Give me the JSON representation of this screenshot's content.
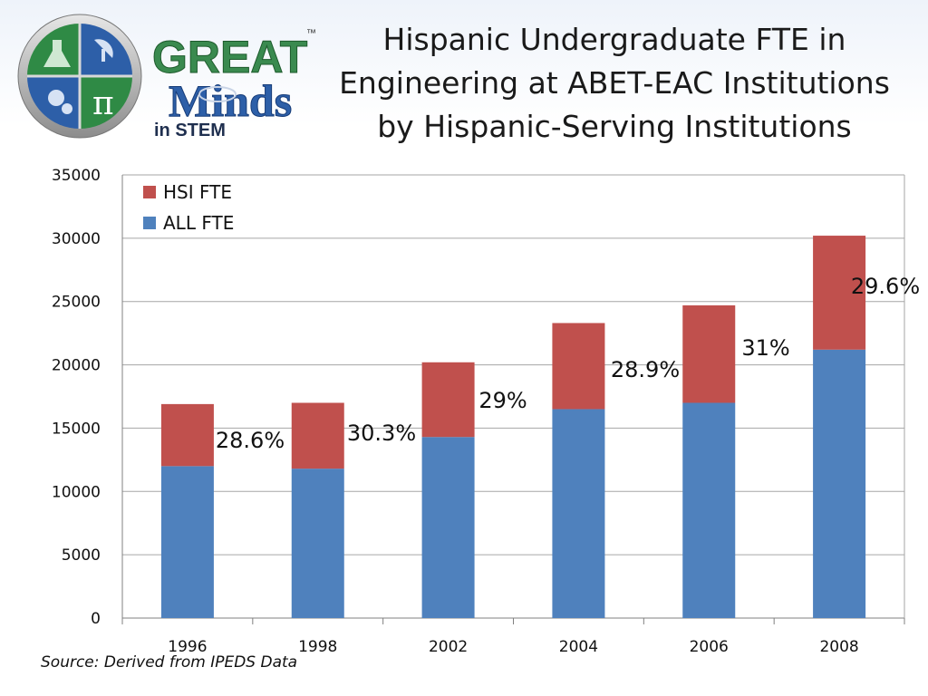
{
  "logo": {
    "word1": "GREAT",
    "word2": "Minds",
    "word3": "in STEM",
    "tm": "™"
  },
  "title_lines": [
    "Hispanic Undergraduate FTE in",
    "Engineering at ABET-EAC Institutions",
    "by Hispanic-Serving Institutions"
  ],
  "source": "Source: Derived from IPEDS Data",
  "colors": {
    "all": "#4f81bd",
    "hsi": "#c0504d",
    "grid": "#a6a6a6"
  },
  "chart_data": {
    "type": "bar",
    "stacked": true,
    "categories": [
      "1996",
      "1998",
      "2002",
      "2004",
      "2006",
      "2008"
    ],
    "series": [
      {
        "name": "ALL FTE",
        "values": [
          12000,
          11800,
          14300,
          16500,
          17000,
          21200
        ]
      },
      {
        "name": "HSI FTE",
        "values": [
          4900,
          5200,
          5900,
          6800,
          7700,
          9000
        ]
      }
    ],
    "annotations": [
      "28.6%",
      "30.3%",
      "29%",
      "28.9%",
      "31%",
      "29.6%"
    ],
    "ylim": [
      0,
      35000
    ],
    "yticks": [
      0,
      5000,
      10000,
      15000,
      20000,
      25000,
      30000,
      35000
    ],
    "grid": true,
    "legend_position": "top-left"
  }
}
